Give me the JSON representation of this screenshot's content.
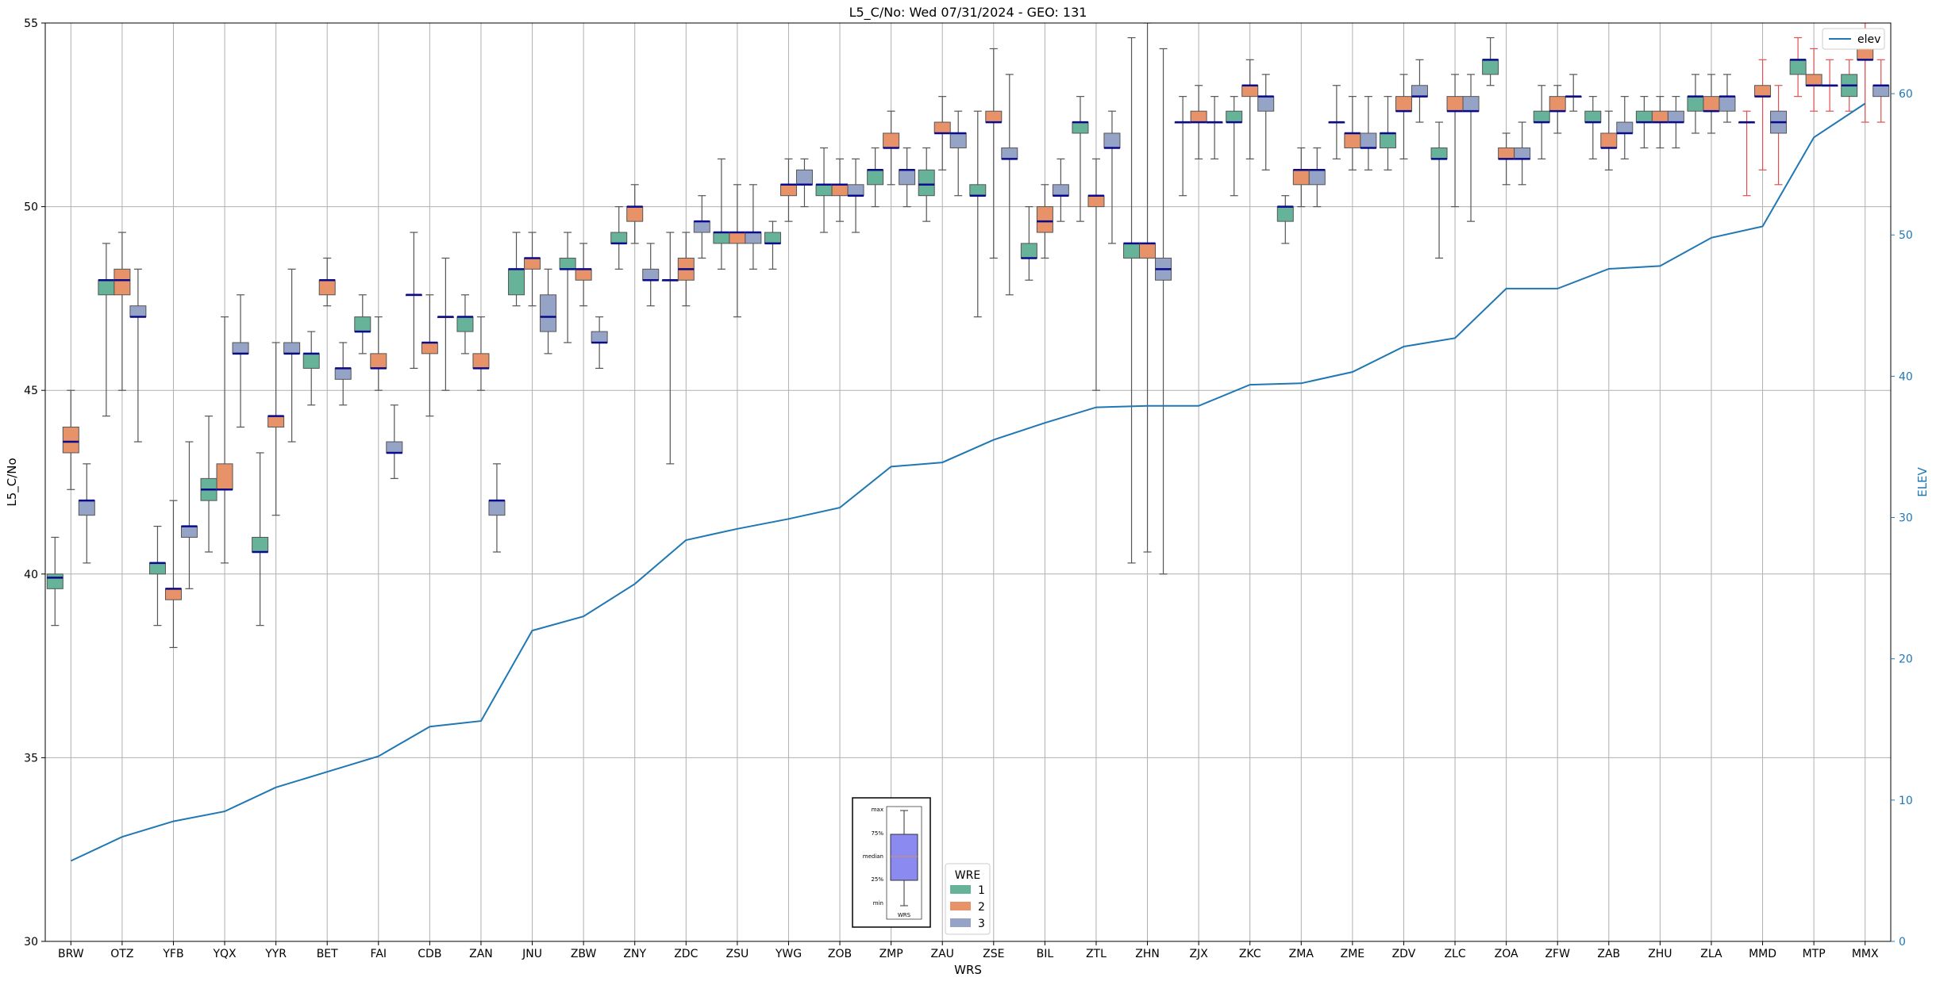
{
  "chart_data": {
    "type": "box",
    "title": "L5_C/No: Wed 07/31/2024 - GEO: 131",
    "xlabel": "WRS",
    "ylabel": "L5_C/No",
    "y2label": "ELEV",
    "ylim": [
      30,
      55
    ],
    "y2lim": [
      0,
      65
    ],
    "yticks": [
      30,
      35,
      40,
      45,
      50,
      55
    ],
    "y2ticks": [
      0,
      10,
      20,
      30,
      40,
      50,
      60
    ],
    "grid": true,
    "categories": [
      "BRW",
      "OTZ",
      "YFB",
      "YQX",
      "YYR",
      "BET",
      "FAI",
      "CDB",
      "ZAN",
      "JNU",
      "ZBW",
      "ZNY",
      "ZDC",
      "ZSU",
      "YWG",
      "ZOB",
      "ZMP",
      "ZAU",
      "ZSE",
      "BIL",
      "ZTL",
      "ZHN",
      "ZJX",
      "ZKC",
      "ZMA",
      "ZME",
      "ZDV",
      "ZLC",
      "ZOA",
      "ZFW",
      "ZAB",
      "ZHU",
      "ZLA",
      "MMD",
      "MTP",
      "MMX"
    ],
    "wre_colors": {
      "1": "#66b39a",
      "2": "#e8926a",
      "3": "#95a3c6"
    },
    "legend_wre": {
      "title": "WRE",
      "labels": [
        "1",
        "2",
        "3"
      ],
      "position": "bottom-center"
    },
    "legend_elev": {
      "label": "elev",
      "position": "top-right"
    },
    "inset_key": {
      "labels": [
        "max",
        "75%",
        "median",
        "25%",
        "min"
      ],
      "xlabel": "WRS"
    },
    "series": [
      {
        "name": "1",
        "boxes": [
          [
            0,
            38.6,
            39.6,
            39.9,
            40.0,
            41.0
          ],
          [
            1,
            44.3,
            47.6,
            48.0,
            48.0,
            49.0
          ],
          [
            2,
            38.6,
            40.0,
            40.3,
            40.3,
            41.3
          ],
          [
            3,
            40.6,
            42.0,
            42.3,
            42.6,
            44.3
          ],
          [
            4,
            38.6,
            40.6,
            40.6,
            41.0,
            43.3
          ],
          [
            5,
            44.6,
            45.6,
            46.0,
            46.0,
            46.6
          ],
          [
            6,
            46.0,
            46.6,
            46.6,
            47.0,
            47.6
          ],
          [
            7,
            45.6,
            47.6,
            47.6,
            47.6,
            49.3
          ],
          [
            8,
            46.0,
            46.6,
            47.0,
            47.0,
            47.6
          ],
          [
            9,
            47.3,
            47.6,
            48.3,
            48.3,
            49.3
          ],
          [
            10,
            46.3,
            48.3,
            48.3,
            48.6,
            49.3
          ],
          [
            11,
            48.3,
            49.0,
            49.0,
            49.3,
            50.0
          ],
          [
            12,
            43.0,
            48.0,
            48.0,
            48.0,
            49.3
          ],
          [
            13,
            48.3,
            49.0,
            49.3,
            49.3,
            51.3
          ],
          [
            14,
            48.3,
            49.0,
            49.0,
            49.3,
            49.6
          ],
          [
            15,
            49.3,
            50.3,
            50.6,
            50.6,
            51.6
          ],
          [
            16,
            50.0,
            50.6,
            51.0,
            51.0,
            51.6
          ],
          [
            17,
            49.6,
            50.3,
            50.6,
            51.0,
            51.6
          ],
          [
            18,
            47.0,
            50.3,
            50.3,
            50.6,
            52.6
          ],
          [
            19,
            48.0,
            48.6,
            48.6,
            49.0,
            50.0
          ],
          [
            20,
            49.6,
            52.0,
            52.3,
            52.3,
            53.0
          ],
          [
            21,
            40.3,
            48.6,
            49.0,
            49.0,
            54.6
          ],
          [
            22,
            50.3,
            52.3,
            52.3,
            52.3,
            53.0
          ],
          [
            23,
            50.3,
            52.3,
            52.3,
            52.6,
            53.0
          ],
          [
            24,
            49.0,
            49.6,
            50.0,
            50.0,
            50.3
          ],
          [
            25,
            51.3,
            52.3,
            52.3,
            52.3,
            53.3
          ],
          [
            26,
            51.0,
            51.6,
            52.0,
            52.0,
            53.0
          ],
          [
            27,
            48.6,
            51.3,
            51.3,
            51.6,
            52.3
          ],
          [
            28,
            53.3,
            53.6,
            54.0,
            54.0,
            54.6
          ],
          [
            29,
            51.3,
            52.3,
            52.3,
            52.6,
            53.3
          ],
          [
            30,
            51.3,
            52.3,
            52.3,
            52.6,
            53.0
          ],
          [
            31,
            51.6,
            52.3,
            52.3,
            52.6,
            53.0
          ],
          [
            32,
            52.0,
            52.6,
            53.0,
            53.0,
            53.6
          ],
          [
            33,
            50.3,
            52.3,
            52.3,
            52.3,
            52.6
          ],
          [
            34,
            53.0,
            53.6,
            54.0,
            54.0,
            54.6
          ],
          [
            35,
            52.6,
            53.0,
            53.3,
            53.6,
            54.0
          ]
        ]
      },
      {
        "name": "2",
        "boxes": [
          [
            0,
            42.3,
            43.3,
            43.6,
            44.0,
            45.0
          ],
          [
            1,
            45.0,
            47.6,
            48.0,
            48.3,
            49.3
          ],
          [
            2,
            38.0,
            39.3,
            39.6,
            39.6,
            42.0
          ],
          [
            3,
            40.3,
            42.3,
            42.3,
            43.0,
            47.0
          ],
          [
            4,
            41.6,
            44.0,
            44.3,
            44.3,
            46.3
          ],
          [
            5,
            47.3,
            47.6,
            48.0,
            48.0,
            48.6
          ],
          [
            6,
            45.0,
            45.6,
            45.6,
            46.0,
            47.0
          ],
          [
            7,
            44.3,
            46.0,
            46.3,
            46.3,
            47.6
          ],
          [
            8,
            45.0,
            45.6,
            45.6,
            46.0,
            47.0
          ],
          [
            9,
            47.3,
            48.3,
            48.6,
            48.6,
            49.3
          ],
          [
            10,
            47.3,
            48.0,
            48.3,
            48.3,
            49.0
          ],
          [
            11,
            49.0,
            49.6,
            50.0,
            50.0,
            50.6
          ],
          [
            12,
            47.3,
            48.0,
            48.3,
            48.6,
            49.3
          ],
          [
            13,
            47.0,
            49.0,
            49.3,
            49.3,
            50.6
          ],
          [
            14,
            49.6,
            50.3,
            50.6,
            50.6,
            51.3
          ],
          [
            15,
            49.6,
            50.3,
            50.6,
            50.6,
            51.3
          ],
          [
            16,
            50.6,
            51.6,
            51.6,
            52.0,
            52.6
          ],
          [
            17,
            51.0,
            52.0,
            52.0,
            52.3,
            53.0
          ],
          [
            18,
            48.6,
            52.3,
            52.3,
            52.6,
            54.3
          ],
          [
            19,
            48.6,
            49.3,
            49.6,
            50.0,
            50.6
          ],
          [
            20,
            45.0,
            50.0,
            50.3,
            50.3,
            51.3
          ],
          [
            21,
            40.6,
            48.6,
            49.0,
            49.0,
            55.0
          ],
          [
            22,
            51.3,
            52.3,
            52.3,
            52.6,
            53.3
          ],
          [
            23,
            51.3,
            53.0,
            53.3,
            53.3,
            54.0
          ],
          [
            24,
            50.0,
            50.6,
            51.0,
            51.0,
            51.6
          ],
          [
            25,
            51.0,
            51.6,
            52.0,
            52.0,
            53.0
          ],
          [
            26,
            51.3,
            52.6,
            52.6,
            53.0,
            53.6
          ],
          [
            27,
            50.0,
            52.6,
            52.6,
            53.0,
            53.6
          ],
          [
            28,
            50.6,
            51.3,
            51.3,
            51.6,
            52.0
          ],
          [
            29,
            52.0,
            52.6,
            52.6,
            53.0,
            53.3
          ],
          [
            30,
            51.0,
            51.6,
            51.6,
            52.0,
            52.6
          ],
          [
            31,
            51.6,
            52.3,
            52.3,
            52.6,
            53.0
          ],
          [
            32,
            52.0,
            52.6,
            52.6,
            53.0,
            53.6
          ],
          [
            33,
            51.0,
            53.0,
            53.0,
            53.3,
            54.0
          ],
          [
            34,
            52.6,
            53.3,
            53.3,
            53.6,
            54.3
          ],
          [
            35,
            52.3,
            54.0,
            54.0,
            54.3,
            55.0
          ]
        ]
      },
      {
        "name": "3",
        "boxes": [
          [
            0,
            40.3,
            41.6,
            42.0,
            42.0,
            43.0
          ],
          [
            1,
            43.6,
            47.0,
            47.0,
            47.3,
            48.3
          ],
          [
            2,
            39.6,
            41.0,
            41.3,
            41.3,
            43.6
          ],
          [
            3,
            44.0,
            46.0,
            46.0,
            46.3,
            47.6
          ],
          [
            4,
            43.6,
            46.0,
            46.0,
            46.3,
            48.3
          ],
          [
            5,
            44.6,
            45.3,
            45.6,
            45.6,
            46.3
          ],
          [
            6,
            42.6,
            43.3,
            43.3,
            43.6,
            44.6
          ],
          [
            7,
            45.0,
            47.0,
            47.0,
            47.0,
            48.6
          ],
          [
            8,
            40.6,
            41.6,
            42.0,
            42.0,
            43.0
          ],
          [
            9,
            46.0,
            46.6,
            47.0,
            47.6,
            48.3
          ],
          [
            10,
            45.6,
            46.3,
            46.3,
            46.6,
            47.0
          ],
          [
            11,
            47.3,
            48.0,
            48.0,
            48.3,
            49.0
          ],
          [
            12,
            48.6,
            49.3,
            49.6,
            49.6,
            50.3
          ],
          [
            13,
            48.3,
            49.0,
            49.3,
            49.3,
            50.6
          ],
          [
            14,
            50.0,
            50.6,
            50.6,
            51.0,
            51.3
          ],
          [
            15,
            49.3,
            50.3,
            50.3,
            50.6,
            51.3
          ],
          [
            16,
            50.0,
            50.6,
            51.0,
            51.0,
            51.6
          ],
          [
            17,
            50.3,
            51.6,
            52.0,
            52.0,
            52.6
          ],
          [
            18,
            47.6,
            51.3,
            51.3,
            51.6,
            53.6
          ],
          [
            19,
            49.6,
            50.3,
            50.3,
            50.6,
            51.3
          ],
          [
            20,
            49.0,
            51.6,
            51.6,
            52.0,
            52.6
          ],
          [
            21,
            40.0,
            48.0,
            48.3,
            48.6,
            54.3
          ],
          [
            22,
            51.3,
            52.3,
            52.3,
            52.3,
            53.0
          ],
          [
            23,
            51.0,
            52.6,
            53.0,
            53.0,
            53.6
          ],
          [
            24,
            50.0,
            50.6,
            51.0,
            51.0,
            51.6
          ],
          [
            25,
            51.0,
            51.6,
            51.6,
            52.0,
            53.0
          ],
          [
            26,
            52.3,
            53.0,
            53.0,
            53.3,
            54.0
          ],
          [
            27,
            49.6,
            52.6,
            52.6,
            53.0,
            53.6
          ],
          [
            28,
            50.6,
            51.3,
            51.3,
            51.6,
            52.3
          ],
          [
            29,
            52.6,
            53.0,
            53.0,
            53.0,
            53.6
          ],
          [
            30,
            51.3,
            52.0,
            52.0,
            52.3,
            53.0
          ],
          [
            31,
            51.6,
            52.3,
            52.3,
            52.6,
            53.0
          ],
          [
            32,
            52.3,
            52.6,
            53.0,
            53.0,
            53.6
          ],
          [
            33,
            50.6,
            52.0,
            52.3,
            52.6,
            53.3
          ],
          [
            34,
            52.6,
            53.3,
            53.3,
            53.3,
            54.0
          ],
          [
            35,
            52.3,
            53.0,
            53.3,
            53.3,
            54.0
          ]
        ]
      }
    ],
    "elev": {
      "name": "elev",
      "values": [
        5.7,
        7.4,
        8.5,
        9.2,
        10.9,
        12.0,
        13.1,
        15.2,
        15.6,
        22.0,
        23.0,
        25.3,
        28.4,
        29.2,
        29.9,
        30.7,
        33.6,
        33.9,
        35.5,
        36.7,
        37.8,
        37.9,
        37.9,
        39.4,
        39.5,
        40.3,
        42.1,
        42.7,
        46.2,
        46.2,
        47.6,
        47.8,
        49.8,
        50.6,
        56.9,
        59.3
      ]
    }
  }
}
